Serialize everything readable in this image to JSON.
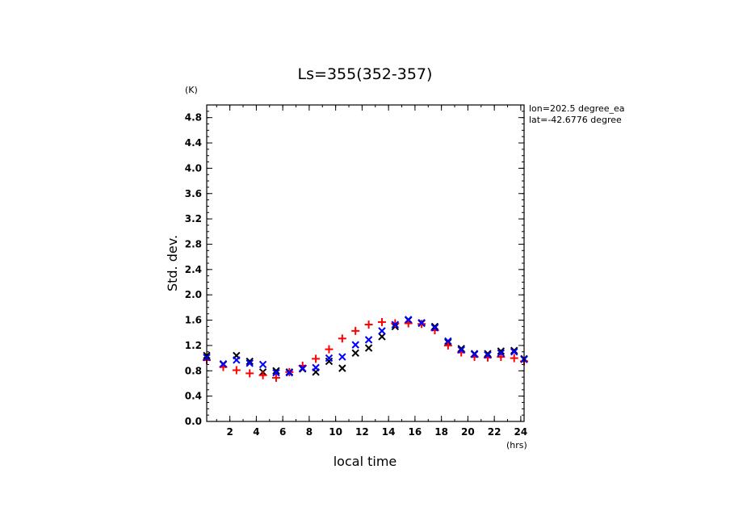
{
  "chart_data": {
    "type": "scatter",
    "title": "Ls=355(352-357)",
    "xlabel": "local time",
    "ylabel": "Std. dev.",
    "x_unit": "(hrs)",
    "y_unit": "(K)",
    "annotation_lines": [
      "lon=202.5 degree_ea",
      "lat=-42.6776 degree"
    ],
    "xlim": [
      0.25,
      24.25
    ],
    "ylim": [
      0,
      5.0
    ],
    "xticks": [
      2,
      4,
      6,
      8,
      10,
      12,
      14,
      16,
      18,
      20,
      22,
      24
    ],
    "yticks": [
      0.0,
      0.4,
      0.8,
      1.2,
      1.6,
      2.0,
      2.4,
      2.8,
      3.2,
      3.6,
      4.0,
      4.4,
      4.8
    ],
    "x": [
      0.25,
      1.5,
      2.5,
      3.5,
      4.5,
      5.5,
      6.5,
      7.5,
      8.5,
      9.5,
      10.5,
      11.5,
      12.5,
      13.5,
      14.5,
      15.5,
      16.5,
      17.5,
      18.5,
      19.5,
      20.5,
      21.5,
      22.5,
      23.5,
      24.25
    ],
    "series": [
      {
        "color": "#000000",
        "marker": "x",
        "values": [
          1.04,
          0.9,
          1.04,
          0.95,
          0.78,
          0.8,
          0.78,
          0.83,
          0.78,
          0.95,
          0.84,
          1.08,
          1.16,
          1.34,
          1.5,
          1.6,
          1.55,
          1.5,
          1.25,
          1.15,
          1.07,
          1.07,
          1.11,
          1.12,
          0.99
        ]
      },
      {
        "color": "#ff0000",
        "marker": "+",
        "values": [
          0.97,
          0.86,
          0.81,
          0.76,
          0.73,
          0.69,
          0.78,
          0.88,
          0.99,
          1.14,
          1.31,
          1.43,
          1.53,
          1.57,
          1.55,
          1.55,
          1.54,
          1.44,
          1.2,
          1.09,
          1.02,
          1.01,
          1.02,
          1.0,
          0.95
        ]
      },
      {
        "color": "#0000ff",
        "marker": "x",
        "values": [
          1.01,
          0.91,
          0.97,
          0.92,
          0.9,
          0.77,
          0.77,
          0.84,
          0.85,
          1.0,
          1.02,
          1.21,
          1.29,
          1.43,
          1.53,
          1.61,
          1.56,
          1.48,
          1.27,
          1.13,
          1.06,
          1.05,
          1.08,
          1.1,
          0.98
        ]
      }
    ]
  }
}
